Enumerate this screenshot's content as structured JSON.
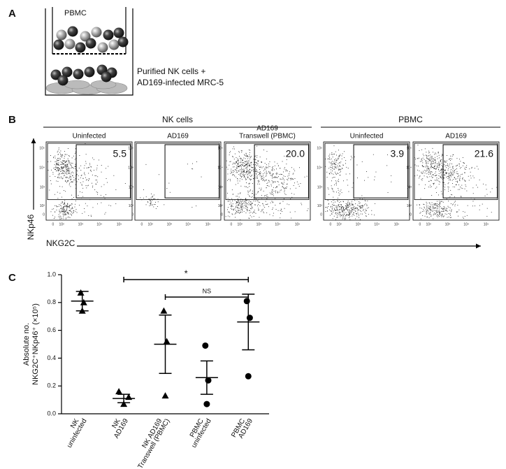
{
  "panel_a": {
    "label": "A",
    "insert_label": "PBMC",
    "bottom_label": [
      "Purified NK cells +",
      "AD169-infected MRC-5"
    ]
  },
  "panel_b": {
    "label": "B",
    "groups": [
      {
        "name": "NK cells",
        "plots": [
          {
            "title": [
              "Uninfected"
            ],
            "gate": "5.5"
          },
          {
            "title": [
              "AD169"
            ]
          },
          {
            "title": [
              "AD169",
              "Transwell (PBMC)"
            ],
            "gate": "20.0"
          }
        ]
      },
      {
        "name": "PBMC",
        "plots": [
          {
            "title": [
              "Uninfected"
            ],
            "gate": "3.9"
          },
          {
            "title": [
              "AD169"
            ],
            "gate": "21.6"
          }
        ]
      }
    ],
    "y_axis": "NKp46",
    "x_axis": "NKG2C",
    "axis_ticks": [
      "0",
      "10²",
      "10³",
      "10⁴",
      "10⁵"
    ]
  },
  "chart_data": {
    "type": "dot",
    "label": "C",
    "y_label": [
      "Absolute no.",
      "NKG2C⁺NKp46⁺ (×10⁵)"
    ],
    "categories": [
      [
        "NK",
        "uninfected"
      ],
      [
        "NK",
        "AD169"
      ],
      [
        "NK AD169",
        "Transwell (PBMC)"
      ],
      [
        "PBMC",
        "uninfected"
      ],
      [
        "PBMC",
        "AD169"
      ]
    ],
    "markers": [
      "triangle",
      "triangle",
      "triangle",
      "circle",
      "circle"
    ],
    "points": [
      [
        0.87,
        0.8,
        0.74
      ],
      [
        0.16,
        0.12,
        0.07
      ],
      [
        0.74,
        0.52,
        0.13
      ],
      [
        0.49,
        0.24,
        0.07
      ],
      [
        0.81,
        0.69,
        0.27
      ]
    ],
    "means": [
      0.81,
      0.11,
      0.5,
      0.26,
      0.66
    ],
    "errors": [
      0.07,
      0.03,
      0.21,
      0.12,
      0.2
    ],
    "ylim": [
      0,
      1.0
    ],
    "yticks": [
      {
        "value": 0,
        "label": "0.0"
      },
      {
        "value": 0.2,
        "label": "0.2"
      },
      {
        "value": 0.4,
        "label": "0.4"
      },
      {
        "value": 0.6,
        "label": "0.6"
      },
      {
        "value": 0.8,
        "label": "0.8"
      },
      {
        "value": 1.0,
        "label": "1.0"
      }
    ],
    "comparisons": [
      {
        "from": 1,
        "to": 4,
        "label": "*"
      },
      {
        "from": 2,
        "to": 4,
        "label": "NS"
      }
    ],
    "color": "#000000"
  }
}
